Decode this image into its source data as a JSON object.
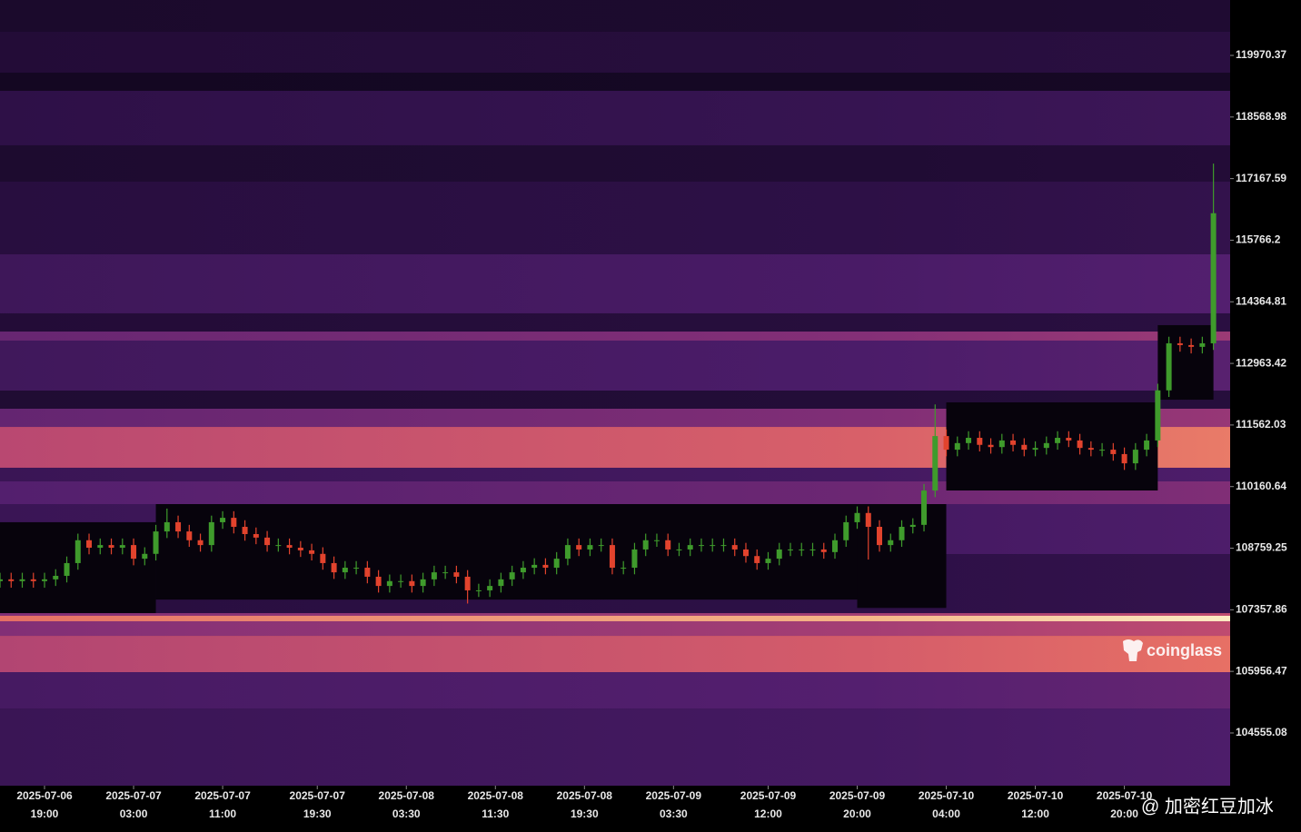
{
  "chart_data": {
    "type": "candlestick-heatmap",
    "x": [
      "2025-07-06 15:00",
      "2025-07-06 16:00",
      "2025-07-06 17:00",
      "2025-07-06 18:00",
      "2025-07-06 19:00",
      "2025-07-06 20:00",
      "2025-07-06 21:00",
      "2025-07-06 22:00",
      "2025-07-06 23:00",
      "2025-07-07 00:00",
      "2025-07-07 01:00",
      "2025-07-07 02:00",
      "2025-07-07 03:00",
      "2025-07-07 04:00",
      "2025-07-07 05:00",
      "2025-07-07 06:00",
      "2025-07-07 07:00",
      "2025-07-07 08:00",
      "2025-07-07 09:00",
      "2025-07-07 10:00",
      "2025-07-07 11:00",
      "2025-07-07 12:00",
      "2025-07-07 13:00",
      "2025-07-07 14:00",
      "2025-07-07 15:00",
      "2025-07-07 16:00",
      "2025-07-07 17:00",
      "2025-07-07 18:00",
      "2025-07-07 19:00",
      "2025-07-07 20:00",
      "2025-07-07 21:00",
      "2025-07-07 22:00",
      "2025-07-07 23:00",
      "2025-07-08 00:00",
      "2025-07-08 01:00",
      "2025-07-08 02:00",
      "2025-07-08 03:00",
      "2025-07-08 04:00",
      "2025-07-08 05:00",
      "2025-07-08 06:00",
      "2025-07-08 07:00",
      "2025-07-08 08:00",
      "2025-07-08 09:00",
      "2025-07-08 10:00",
      "2025-07-08 11:00",
      "2025-07-08 12:00",
      "2025-07-08 13:00",
      "2025-07-08 14:00",
      "2025-07-08 15:00",
      "2025-07-08 16:00",
      "2025-07-08 17:00",
      "2025-07-08 18:00",
      "2025-07-08 19:00",
      "2025-07-08 20:00",
      "2025-07-08 21:00",
      "2025-07-08 22:00",
      "2025-07-08 23:00",
      "2025-07-09 00:00",
      "2025-07-09 01:00",
      "2025-07-09 02:00",
      "2025-07-09 03:00",
      "2025-07-09 04:00",
      "2025-07-09 05:00",
      "2025-07-09 06:00",
      "2025-07-09 07:00",
      "2025-07-09 08:00",
      "2025-07-09 09:00",
      "2025-07-09 10:00",
      "2025-07-09 11:00",
      "2025-07-09 12:00",
      "2025-07-09 13:00",
      "2025-07-09 14:00",
      "2025-07-09 15:00",
      "2025-07-09 16:00",
      "2025-07-09 17:00",
      "2025-07-09 18:00",
      "2025-07-09 19:00",
      "2025-07-09 20:00",
      "2025-07-09 21:00",
      "2025-07-09 22:00",
      "2025-07-09 23:00",
      "2025-07-10 00:00",
      "2025-07-10 01:00",
      "2025-07-10 02:00",
      "2025-07-10 03:00",
      "2025-07-10 04:00",
      "2025-07-10 05:00",
      "2025-07-10 06:00",
      "2025-07-10 07:00",
      "2025-07-10 08:00",
      "2025-07-10 09:00",
      "2025-07-10 10:00",
      "2025-07-10 11:00",
      "2025-07-10 12:00",
      "2025-07-10 13:00",
      "2025-07-10 14:00",
      "2025-07-10 15:00",
      "2025-07-10 16:00",
      "2025-07-10 17:00",
      "2025-07-10 18:00",
      "2025-07-10 19:00",
      "2025-07-10 20:00",
      "2025-07-10 21:00",
      "2025-07-10 22:00",
      "2025-07-10 23:00",
      "2025-07-11 00:00",
      "2025-07-11 01:00",
      "2025-07-11 02:00",
      "2025-07-11 03:00",
      "2025-07-11 04:00"
    ],
    "open": [
      108010,
      108050,
      108010,
      108050,
      108010,
      108050,
      108130,
      108420,
      108940,
      108770,
      108830,
      108770,
      108830,
      108520,
      108630,
      109140,
      109350,
      109140,
      108940,
      108830,
      109350,
      109450,
      109245,
      109080,
      109000,
      108830,
      108830,
      108770,
      108710,
      108630,
      108420,
      108210,
      108315,
      108315,
      108110,
      107900,
      108010,
      108010,
      107900,
      108050,
      108210,
      108210,
      108110,
      107800,
      107800,
      107900,
      108050,
      108210,
      108315,
      108380,
      108315,
      108520,
      108830,
      108730,
      108830,
      108830,
      108315,
      108315,
      108730,
      108940,
      108940,
      108730,
      108730,
      108830,
      108830,
      108830,
      108830,
      108730,
      108580,
      108420,
      108520,
      108730,
      108730,
      108730,
      108730,
      108670,
      108940,
      109350,
      109560,
      109245,
      108830,
      108940,
      109245,
      109290,
      110070,
      111310,
      111000,
      111150,
      111270,
      111110,
      111060,
      111210,
      111110,
      111000,
      111040,
      111150,
      111270,
      111210,
      111040,
      111000,
      111000,
      110900,
      110690,
      111000,
      111210,
      112350,
      113420,
      113380,
      113340,
      113420
    ],
    "high": [
      108200,
      108200,
      108200,
      108200,
      108200,
      108280,
      108570,
      109090,
      109090,
      108980,
      108980,
      108980,
      108980,
      108780,
      109290,
      109660,
      109500,
      109290,
      109090,
      109500,
      109600,
      109600,
      109395,
      109230,
      109150,
      108980,
      108980,
      108920,
      108860,
      108780,
      108570,
      108465,
      108465,
      108465,
      108260,
      108160,
      108160,
      108160,
      108200,
      108360,
      108360,
      108360,
      108260,
      107950,
      108050,
      108200,
      108360,
      108465,
      108530,
      108530,
      108670,
      108980,
      108980,
      108980,
      108980,
      108980,
      108465,
      108880,
      109090,
      109090,
      109090,
      108880,
      108980,
      108980,
      108980,
      108980,
      108980,
      108880,
      108730,
      108670,
      108880,
      108880,
      108880,
      108880,
      108880,
      109090,
      109500,
      109710,
      109710,
      109395,
      109090,
      109395,
      109440,
      110220,
      112030,
      111460,
      111300,
      111420,
      111420,
      111260,
      111360,
      111360,
      111260,
      111190,
      111300,
      111420,
      111420,
      111360,
      111190,
      111150,
      111150,
      111050,
      111150,
      111360,
      112500,
      113570,
      113570,
      113530,
      113570,
      117510
    ],
    "low": [
      107860,
      107860,
      107860,
      107860,
      107860,
      107900,
      107980,
      108270,
      108620,
      108620,
      108620,
      108620,
      108370,
      108370,
      108480,
      108990,
      108990,
      108790,
      108680,
      108680,
      109200,
      109095,
      108930,
      108850,
      108680,
      108680,
      108620,
      108560,
      108480,
      108270,
      108060,
      108060,
      108165,
      107960,
      107750,
      107750,
      107860,
      107750,
      107750,
      107900,
      108060,
      107960,
      107500,
      107650,
      107650,
      107750,
      107900,
      108060,
      108165,
      108165,
      108165,
      108370,
      108580,
      108580,
      108680,
      108165,
      108165,
      108165,
      108580,
      108790,
      108580,
      108580,
      108580,
      108680,
      108680,
      108680,
      108580,
      108430,
      108270,
      108270,
      108370,
      108580,
      108580,
      108580,
      108520,
      108520,
      108790,
      109200,
      108500,
      108680,
      108680,
      108790,
      109095,
      109140,
      109920,
      110850,
      110850,
      111000,
      110960,
      110910,
      110910,
      110960,
      110850,
      110850,
      110890,
      111000,
      111060,
      110890,
      110850,
      110850,
      110750,
      110540,
      110540,
      110850,
      111060,
      112200,
      113230,
      113190,
      113190,
      113270
    ],
    "close": [
      108050,
      108010,
      108050,
      108010,
      108050,
      108130,
      108420,
      108940,
      108770,
      108830,
      108770,
      108830,
      108520,
      108630,
      109140,
      109350,
      109140,
      108940,
      108830,
      109350,
      109450,
      109245,
      109080,
      109000,
      108830,
      108830,
      108770,
      108710,
      108630,
      108420,
      108210,
      108315,
      108315,
      108110,
      107900,
      108010,
      108010,
      107900,
      108050,
      108210,
      108210,
      108110,
      107800,
      107800,
      107900,
      108050,
      108210,
      108315,
      108380,
      108315,
      108520,
      108830,
      108730,
      108830,
      108830,
      108315,
      108315,
      108730,
      108940,
      108940,
      108730,
      108730,
      108830,
      108830,
      108830,
      108830,
      108730,
      108580,
      108420,
      108520,
      108730,
      108730,
      108730,
      108730,
      108670,
      108940,
      109350,
      109560,
      109245,
      108830,
      108940,
      109245,
      109290,
      110070,
      111310,
      111000,
      111150,
      111270,
      111110,
      111060,
      111210,
      111110,
      111000,
      111040,
      111150,
      111270,
      111210,
      111040,
      111000,
      111000,
      110900,
      110690,
      111000,
      111210,
      112350,
      113420,
      113380,
      113340,
      113420,
      116380
    ],
    "up_color": "#3f9b2c",
    "down_color": "#e2432d",
    "heatmap": [
      {
        "low": 120508,
        "high": 121231,
        "intensity": 0.1
      },
      {
        "low": 119578,
        "high": 120508,
        "intensity": 0.16
      },
      {
        "low": 119165,
        "high": 119578,
        "intensity": 0.05
      },
      {
        "low": 117925,
        "high": 119165,
        "intensity": 0.24
      },
      {
        "low": 117098,
        "high": 117925,
        "intensity": 0.12
      },
      {
        "low": 115445,
        "high": 117098,
        "intensity": 0.2
      },
      {
        "low": 114102,
        "high": 115445,
        "intensity": 0.32
      },
      {
        "low": 113688,
        "high": 114102,
        "intensity": 0.16
      },
      {
        "low": 113482,
        "high": 113688,
        "intensity": 0.48
      },
      {
        "low": 112345,
        "high": 113482,
        "intensity": 0.33
      },
      {
        "low": 111932,
        "high": 112345,
        "intensity": 0.14
      },
      {
        "low": 111518,
        "high": 111932,
        "intensity": 0.47
      },
      {
        "low": 110589,
        "high": 111518,
        "intensity": 0.72
      },
      {
        "low": 110279,
        "high": 110589,
        "intensity": 0.3
      },
      {
        "low": 109762,
        "high": 110279,
        "intensity": 0.42
      },
      {
        "low": 108625,
        "high": 109762,
        "intensity": 0.3
      },
      {
        "low": 107282,
        "high": 108625,
        "intensity": 0.2
      },
      {
        "low": 106765,
        "high": 107282,
        "intensity": 0.56
      },
      {
        "low": 107097,
        "high": 107221,
        "intensity": 0.92
      },
      {
        "low": 105939,
        "high": 106765,
        "intensity": 0.7
      },
      {
        "low": 105112,
        "high": 105939,
        "intensity": 0.36
      },
      {
        "low": 103356,
        "high": 105112,
        "intensity": 0.3
      }
    ],
    "cleared": [
      {
        "start": "2025-07-06 15:00",
        "end": "2025-07-07 05:00",
        "low": 107282,
        "high": 109350
      },
      {
        "start": "2025-07-07 05:00",
        "end": "2025-07-09 20:00",
        "low": 107590,
        "high": 109762
      },
      {
        "start": "2025-07-09 20:00",
        "end": "2025-07-10 04:00",
        "low": 107400,
        "high": 109762
      },
      {
        "start": "2025-07-10 04:00",
        "end": "2025-07-10 23:00",
        "low": 110072,
        "high": 112076
      },
      {
        "start": "2025-07-10 23:00",
        "end": "2025-07-11 04:00",
        "low": 112138,
        "high": 113834
      }
    ],
    "xlim": [
      "2025-07-06 15:00",
      "2025-07-11 05:30"
    ],
    "ylim": [
      103356,
      121231
    ],
    "yticks": [
      119970.37,
      118568.98,
      117167.59,
      115766.2,
      114364.81,
      112963.42,
      111562.03,
      110160.64,
      108759.25,
      107357.86,
      105956.47,
      104555.08
    ],
    "xticks": [
      {
        "value": "2025-07-06 19:00",
        "label": [
          "2025-07-06",
          "19:00"
        ]
      },
      {
        "value": "2025-07-07 03:00",
        "label": [
          "2025-07-07",
          "03:00"
        ]
      },
      {
        "value": "2025-07-07 11:00",
        "label": [
          "2025-07-07",
          "11:00"
        ]
      },
      {
        "value": "2025-07-07 19:30",
        "label": [
          "2025-07-07",
          "19:30"
        ]
      },
      {
        "value": "2025-07-08 03:30",
        "label": [
          "2025-07-08",
          "03:30"
        ]
      },
      {
        "value": "2025-07-08 11:30",
        "label": [
          "2025-07-08",
          "11:30"
        ]
      },
      {
        "value": "2025-07-08 19:30",
        "label": [
          "2025-07-08",
          "19:30"
        ]
      },
      {
        "value": "2025-07-09 03:30",
        "label": [
          "2025-07-09",
          "03:30"
        ]
      },
      {
        "value": "2025-07-09 12:00",
        "label": [
          "2025-07-09",
          "12:00"
        ]
      },
      {
        "value": "2025-07-09 20:00",
        "label": [
          "2025-07-09",
          "20:00"
        ]
      },
      {
        "value": "2025-07-10 04:00",
        "label": [
          "2025-07-10",
          "04:00"
        ]
      },
      {
        "value": "2025-07-10 12:00",
        "label": [
          "2025-07-10",
          "12:00"
        ]
      },
      {
        "value": "2025-07-10 20:00",
        "label": [
          "2025-07-10",
          "20:00"
        ]
      }
    ],
    "watermark": "coinglass",
    "credit": "@ 加密红豆加冰"
  }
}
